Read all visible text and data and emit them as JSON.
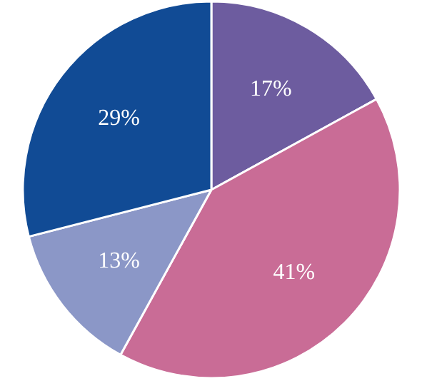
{
  "chart_data": {
    "type": "pie",
    "categories": [
      null,
      null,
      null,
      null
    ],
    "values": [
      17,
      41,
      13,
      29
    ],
    "colors": [
      "#6d5c9f",
      "#c96c96",
      "#8b97c7",
      "#114b95"
    ],
    "value_labels": [
      "17%",
      "41%",
      "13%",
      "29%"
    ]
  }
}
